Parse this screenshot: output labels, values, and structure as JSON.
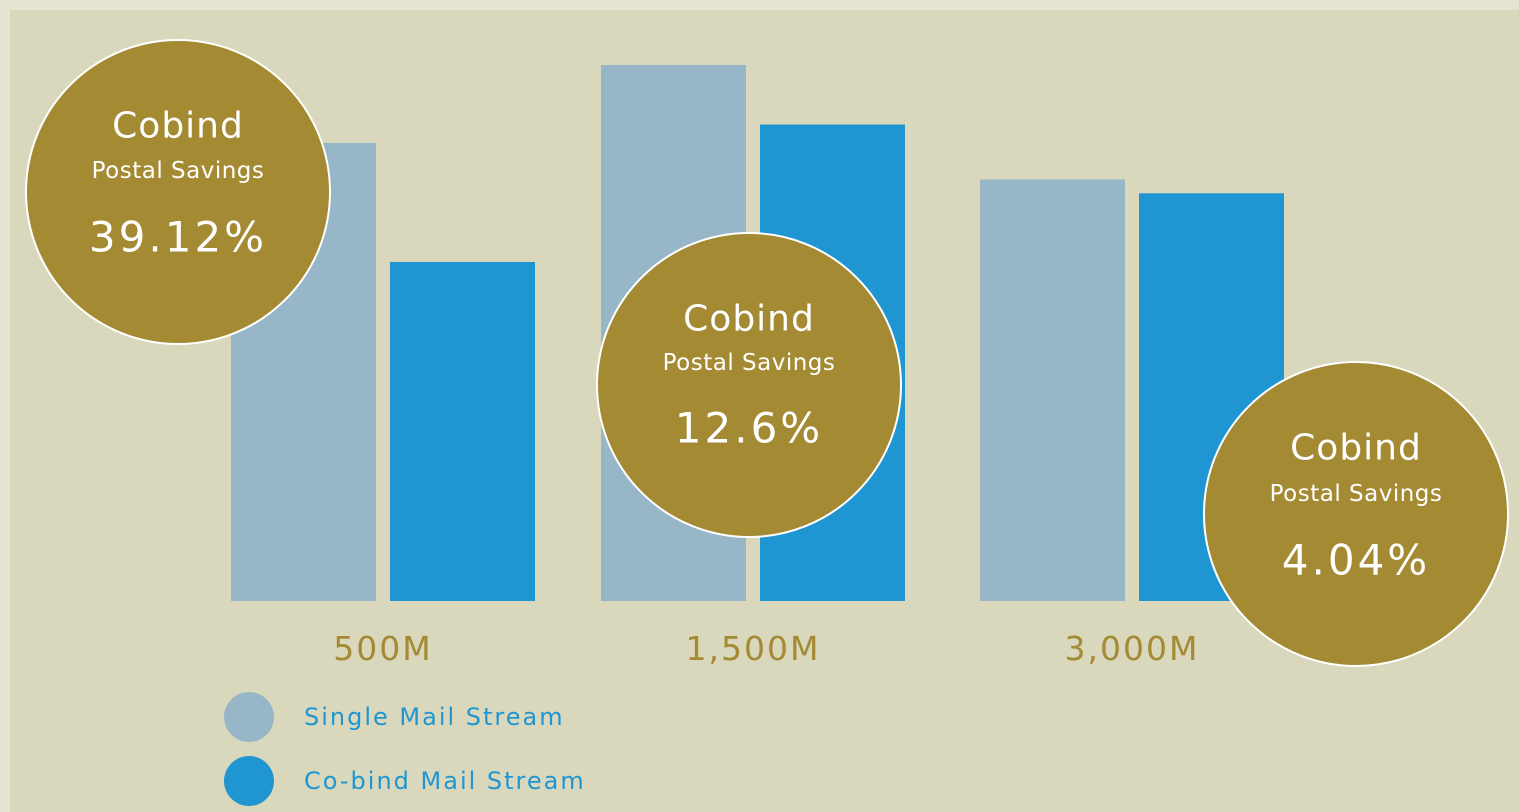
{
  "colors": {
    "background": "#d9d8bc",
    "frame": "#e6e3d2",
    "single": "#97b7c8",
    "cobind": "#1f96d2",
    "badge": "#a48a32",
    "badge_outline": "#ffffff",
    "badge_text": "#ffffff",
    "category_text": "#a48a32",
    "legend_text": "#1f96d2"
  },
  "chart_data": {
    "type": "bar",
    "categories": [
      "500M",
      "1,500M",
      "3,000M"
    ],
    "series": [
      {
        "name": "Single Mail Stream",
        "values": [
          100,
          117,
          92
        ]
      },
      {
        "name": "Co-bind Mail Stream",
        "values": [
          74,
          104,
          89
        ]
      }
    ],
    "ylim": [
      0,
      117
    ],
    "grid": false,
    "legend": {
      "position": "bottom-left",
      "entries": [
        "Single Mail Stream",
        "Co-bind Mail Stream"
      ]
    },
    "annotations": [
      {
        "category": "500M",
        "line1": "Cobind",
        "line2": "Postal Savings",
        "value": "39.12%"
      },
      {
        "category": "1,500M",
        "line1": "Cobind",
        "line2": "Postal Savings",
        "value": "12.6%"
      },
      {
        "category": "3,000M",
        "line1": "Cobind",
        "line2": "Postal Savings",
        "value": "4.04%"
      }
    ]
  }
}
